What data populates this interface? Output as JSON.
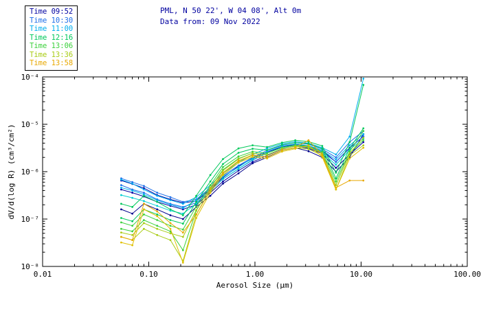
{
  "header": {
    "title_line1": "PML, N 50 22', W 04 08', Alt 0m",
    "title_line2": "Data from: 09 Nov 2022",
    "title_color": "#00009F"
  },
  "chart_data": {
    "type": "line",
    "title": "PML, N 50 22', W 04 08', Alt 0m",
    "subtitle": "Data from: 09 Nov 2022",
    "xlabel": "Aerosol Size (μm)",
    "ylabel": "dV/d(log R) (cm³/cm²)",
    "x_scale": "log",
    "y_scale": "log",
    "xlim": [
      0.01,
      100
    ],
    "ylim": [
      1e-08,
      0.0001
    ],
    "x_tick_values": [
      0.01,
      0.1,
      1,
      10,
      100
    ],
    "x_tick_labels": [
      "0.01",
      "0.10",
      "1.00",
      "10.00",
      "100.00"
    ],
    "y_tick_values": [
      1e-08,
      1e-07,
      1e-06,
      1e-05,
      0.0001
    ],
    "y_tick_labels": [
      "10⁻⁸",
      "10⁻⁷",
      "10⁻⁶",
      "10⁻⁵",
      "10⁻⁴"
    ],
    "grid": false,
    "legend_position": "top-left",
    "legend": [
      {
        "label": "Time 09:52",
        "color": "#0000A0"
      },
      {
        "label": "Time 10:30",
        "color": "#1E6EE8"
      },
      {
        "label": "Time 11:00",
        "color": "#00AEEF"
      },
      {
        "label": "Time 12:16",
        "color": "#00C85A"
      },
      {
        "label": "Time 13:06",
        "color": "#3CD13C"
      },
      {
        "label": "Time 13:36",
        "color": "#A8CC14"
      },
      {
        "label": "Time 13:58",
        "color": "#E8A800"
      }
    ],
    "x": [
      0.055,
      0.07,
      0.09,
      0.12,
      0.16,
      0.21,
      0.28,
      0.38,
      0.5,
      0.7,
      0.95,
      1.3,
      1.8,
      2.4,
      3.2,
      4.3,
      5.8,
      7.8,
      10.5
    ],
    "series": [
      {
        "name": "Time 09:52 run 1",
        "color": "#0000A0",
        "values": [
          6.5e-07,
          5.5e-07,
          4.5e-07,
          3.2e-07,
          2.6e-07,
          2.2e-07,
          2.4e-07,
          4.2e-07,
          7.5e-07,
          1.3e-06,
          1.9e-06,
          2.6e-06,
          3.3e-06,
          3.8e-06,
          3.5e-06,
          2.8e-06,
          1.6e-06,
          3.2e-06,
          5.5e-06
        ]
      },
      {
        "name": "Time 09:52 run 2",
        "color": "#0000A0",
        "values": [
          4.2e-07,
          3.6e-07,
          3e-07,
          2.3e-07,
          1.9e-07,
          1.6e-07,
          2e-07,
          3.6e-07,
          6.2e-07,
          1.05e-06,
          1.6e-06,
          2.2e-06,
          3e-06,
          3.5e-06,
          3.1e-06,
          2.4e-06,
          1.2e-06,
          2.3e-06,
          4.2e-06
        ]
      },
      {
        "name": "Time 09:52 run 3",
        "color": "#00008B",
        "values": [
          1.6e-07,
          1.3e-07,
          2.1e-07,
          1.6e-07,
          1.2e-07,
          1e-07,
          1.8e-07,
          3.1e-07,
          5.6e-07,
          9.2e-07,
          1.5e-06,
          2e-06,
          2.8e-06,
          3.2e-06,
          2.7e-06,
          2e-06,
          1e-06,
          2e-06,
          6.2e-06
        ]
      },
      {
        "name": "Time 10:30 run 1",
        "color": "#1E6EE8",
        "values": [
          7.2e-07,
          6e-07,
          5e-07,
          3.6e-07,
          2.9e-07,
          2.3e-07,
          2.6e-07,
          4.6e-07,
          8.2e-07,
          1.35e-06,
          2e-06,
          2.8e-06,
          3.6e-06,
          4.1e-06,
          3.8e-06,
          3e-06,
          2e-06,
          4.2e-06,
          7.2e-06
        ]
      },
      {
        "name": "Time 10:30 run 2",
        "color": "#1E6EE8",
        "values": [
          5.2e-07,
          4.2e-07,
          3.6e-07,
          2.6e-07,
          2.1e-07,
          1.8e-07,
          2.2e-07,
          4e-07,
          7e-07,
          1.15e-06,
          1.75e-06,
          2.45e-06,
          3.25e-06,
          3.65e-06,
          3.35e-06,
          2.6e-06,
          1.6e-06,
          3.1e-06,
          5.6e-06
        ]
      },
      {
        "name": "Time 11:00 run 1",
        "color": "#00AEEF",
        "values": [
          6.8e-07,
          5.6e-07,
          4.2e-07,
          3.1e-07,
          2.5e-07,
          2.1e-07,
          2.9e-07,
          5.2e-07,
          9.2e-07,
          1.55e-06,
          2.3e-06,
          3.1e-06,
          3.9e-06,
          4.3e-06,
          4e-06,
          3.2e-06,
          2.3e-06,
          5.5e-06,
          9.2e-05
        ]
      },
      {
        "name": "Time 11:00 run 2",
        "color": "#00AEEF",
        "values": [
          4.6e-07,
          4e-07,
          3.3e-07,
          2.5e-07,
          2e-07,
          1.7e-07,
          2.5e-07,
          4.4e-07,
          7.8e-07,
          1.25e-06,
          1.95e-06,
          2.65e-06,
          3.45e-06,
          3.85e-06,
          3.55e-06,
          2.8e-06,
          1.8e-06,
          3.6e-06,
          6.2e-06
        ]
      },
      {
        "name": "Time 11:00 run 3",
        "color": "#00CED1",
        "values": [
          3.2e-07,
          2.8e-07,
          2.4e-07,
          1.9e-07,
          1.5e-07,
          1.3e-07,
          2.1e-07,
          3.9e-07,
          7e-07,
          1.15e-06,
          1.8e-06,
          2.45e-06,
          3.2e-06,
          3.6e-06,
          3.3e-06,
          2.5e-06,
          1.4e-06,
          2.9e-06,
          5e-06
        ]
      },
      {
        "name": "Time 12:16 run 1",
        "color": "#00C85A",
        "values": [
          2.1e-07,
          1.8e-07,
          3.1e-07,
          2.3e-07,
          1.6e-07,
          1.2e-07,
          3.1e-07,
          8.5e-07,
          1.85e-06,
          3.1e-06,
          3.6e-06,
          3.3e-06,
          4.1e-06,
          4.6e-06,
          4.3e-06,
          3.5e-06,
          9.5e-07,
          4.2e-06,
          6.8e-05
        ]
      },
      {
        "name": "Time 12:16 run 2",
        "color": "#00C85A",
        "values": [
          1.05e-07,
          9e-08,
          1.6e-07,
          1.25e-07,
          9.5e-08,
          8e-08,
          2.3e-07,
          6.2e-07,
          1.45e-06,
          2.5e-06,
          3.05e-06,
          2.85e-06,
          3.7e-06,
          4.1e-06,
          3.9e-06,
          3.05e-06,
          7.2e-07,
          3.1e-06,
          8.2e-06
        ]
      },
      {
        "name": "Time 13:06 run 1",
        "color": "#3CD13C",
        "values": [
          8.5e-08,
          7.2e-08,
          1.25e-07,
          9.5e-08,
          7.2e-08,
          6e-08,
          1.85e-07,
          5.2e-07,
          1.25e-06,
          2.1e-06,
          2.65e-06,
          2.45e-06,
          3.25e-06,
          3.65e-06,
          3.45e-06,
          2.65e-06,
          6.2e-07,
          2.65e-06,
          7.2e-06
        ]
      },
      {
        "name": "Time 13:06 run 2",
        "color": "#3CD13C",
        "values": [
          6.2e-08,
          5.5e-08,
          9.5e-08,
          7.2e-08,
          5.5e-08,
          2.2e-08,
          1.5e-07,
          4.6e-07,
          1.1e-06,
          1.9e-06,
          2.45e-06,
          2.25e-06,
          3.05e-06,
          3.45e-06,
          3.25e-06,
          2.45e-06,
          5.2e-07,
          2.45e-06,
          4.6e-06
        ]
      },
      {
        "name": "Time 13:36 run 1",
        "color": "#A8CC14",
        "values": [
          5.2e-08,
          4.6e-08,
          8.2e-08,
          6.2e-08,
          5e-08,
          4.2e-08,
          1.55e-07,
          4.6e-07,
          1.05e-06,
          1.85e-06,
          2.45e-06,
          2.25e-06,
          3.05e-06,
          3.45e-06,
          3.25e-06,
          2.45e-06,
          5.2e-07,
          2.45e-06,
          5.2e-06
        ]
      },
      {
        "name": "Time 13:36 run 2",
        "color": "#A8CC14",
        "values": [
          4.2e-08,
          3.6e-08,
          6.2e-08,
          4.6e-08,
          3.6e-08,
          1.3e-08,
          1.25e-07,
          4e-07,
          9.2e-07,
          1.65e-06,
          2.2e-06,
          2.05e-06,
          2.8e-06,
          3.2e-06,
          3e-06,
          2.2e-06,
          4.2e-07,
          2.2e-06,
          3.6e-06
        ]
      },
      {
        "name": "Time 13:58 run 1",
        "color": "#E8A800",
        "values": [
          4.2e-08,
          3.6e-08,
          2.1e-07,
          1.45e-07,
          8.2e-08,
          5.2e-08,
          1.25e-07,
          4.2e-07,
          9.5e-07,
          1.7e-06,
          2.25e-06,
          2.05e-06,
          2.85e-06,
          3.25e-06,
          4.6e-06,
          2.25e-06,
          4.6e-07,
          6.5e-07,
          6.5e-07
        ]
      },
      {
        "name": "Time 13:58 run 2",
        "color": "#E0C000",
        "values": [
          3.2e-08,
          2.8e-08,
          1.6e-07,
          1.15e-07,
          6.2e-08,
          1.2e-08,
          1.05e-07,
          3.6e-07,
          8.5e-07,
          1.55e-06,
          2.05e-06,
          1.9e-06,
          2.65e-06,
          3.05e-06,
          3.6e-06,
          2.05e-06,
          4.2e-07,
          1.9e-06,
          3.2e-06
        ]
      }
    ]
  }
}
